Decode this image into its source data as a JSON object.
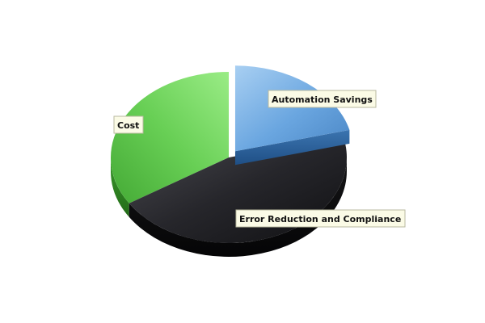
{
  "chart_data": {
    "type": "pie",
    "style": "3d-exploded",
    "legend": "none",
    "slices": [
      {
        "label": "Automation Savings",
        "value": 21,
        "color": "#5b9bd5",
        "exploded": true
      },
      {
        "label": "Error Reduction and Compliance",
        "value": 45,
        "color": "#1e1e22",
        "exploded": false
      },
      {
        "label": "Cost",
        "value": 34,
        "color": "#5cc24a",
        "exploded": false
      }
    ]
  }
}
